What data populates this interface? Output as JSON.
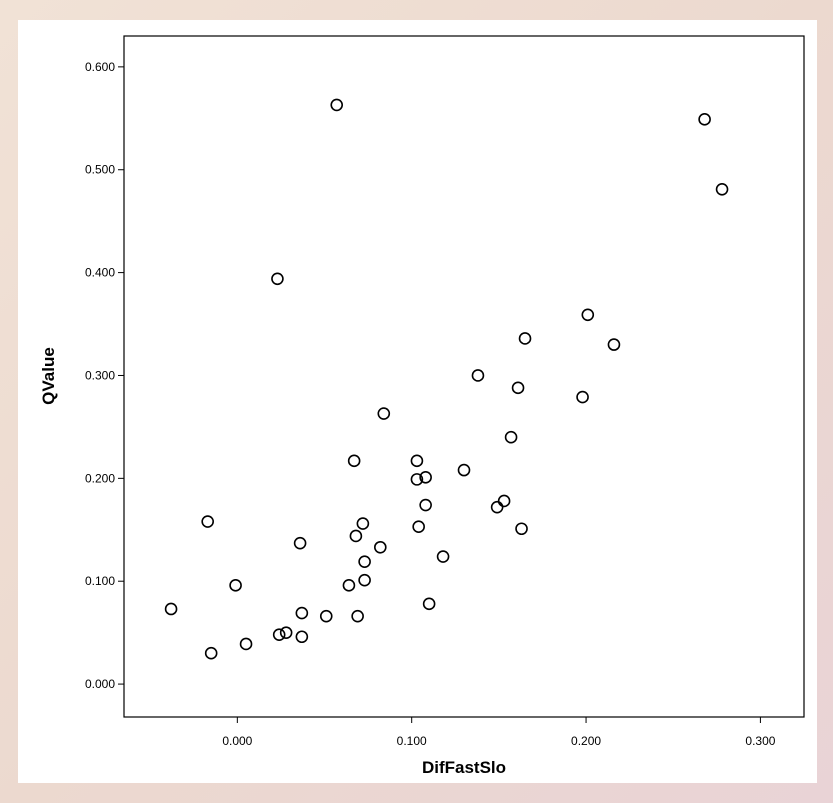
{
  "chart_data": {
    "type": "scatter",
    "xlabel": "DifFastSlo",
    "ylabel": "QValue",
    "xlim": [
      -0.065,
      0.325
    ],
    "ylim": [
      -0.032,
      0.63
    ],
    "xticks": [
      0.0,
      0.1,
      0.2,
      0.3
    ],
    "xtick_labels": [
      "0.000",
      "0.100",
      "0.200",
      "0.300"
    ],
    "yticks": [
      0.0,
      0.1,
      0.2,
      0.3,
      0.4,
      0.5,
      0.6
    ],
    "ytick_labels": [
      "0.000",
      "0.100",
      "0.200",
      "0.300",
      "0.400",
      "0.500",
      "0.600"
    ],
    "grid": false,
    "marker": "open-circle",
    "marker_color": "#000000",
    "points": [
      {
        "x": 0.057,
        "y": 0.563
      },
      {
        "x": 0.268,
        "y": 0.549
      },
      {
        "x": 0.278,
        "y": 0.481
      },
      {
        "x": 0.023,
        "y": 0.394
      },
      {
        "x": 0.201,
        "y": 0.359
      },
      {
        "x": 0.165,
        "y": 0.336
      },
      {
        "x": 0.216,
        "y": 0.33
      },
      {
        "x": 0.138,
        "y": 0.3
      },
      {
        "x": 0.161,
        "y": 0.288
      },
      {
        "x": 0.198,
        "y": 0.279
      },
      {
        "x": 0.084,
        "y": 0.263
      },
      {
        "x": 0.157,
        "y": 0.24
      },
      {
        "x": 0.067,
        "y": 0.217
      },
      {
        "x": 0.103,
        "y": 0.217
      },
      {
        "x": 0.13,
        "y": 0.208
      },
      {
        "x": 0.108,
        "y": 0.201
      },
      {
        "x": 0.103,
        "y": 0.199
      },
      {
        "x": 0.108,
        "y": 0.174
      },
      {
        "x": 0.153,
        "y": 0.178
      },
      {
        "x": 0.149,
        "y": 0.172
      },
      {
        "x": -0.017,
        "y": 0.158
      },
      {
        "x": 0.072,
        "y": 0.156
      },
      {
        "x": 0.104,
        "y": 0.153
      },
      {
        "x": 0.163,
        "y": 0.151
      },
      {
        "x": 0.068,
        "y": 0.144
      },
      {
        "x": 0.036,
        "y": 0.137
      },
      {
        "x": 0.082,
        "y": 0.133
      },
      {
        "x": 0.118,
        "y": 0.124
      },
      {
        "x": 0.073,
        "y": 0.119
      },
      {
        "x": 0.073,
        "y": 0.101
      },
      {
        "x": 0.064,
        "y": 0.096
      },
      {
        "x": -0.001,
        "y": 0.096
      },
      {
        "x": -0.038,
        "y": 0.073
      },
      {
        "x": 0.037,
        "y": 0.069
      },
      {
        "x": 0.051,
        "y": 0.066
      },
      {
        "x": 0.069,
        "y": 0.066
      },
      {
        "x": 0.11,
        "y": 0.078
      },
      {
        "x": 0.028,
        "y": 0.05
      },
      {
        "x": 0.024,
        "y": 0.048
      },
      {
        "x": 0.037,
        "y": 0.046
      },
      {
        "x": 0.005,
        "y": 0.039
      },
      {
        "x": -0.015,
        "y": 0.03
      }
    ]
  }
}
